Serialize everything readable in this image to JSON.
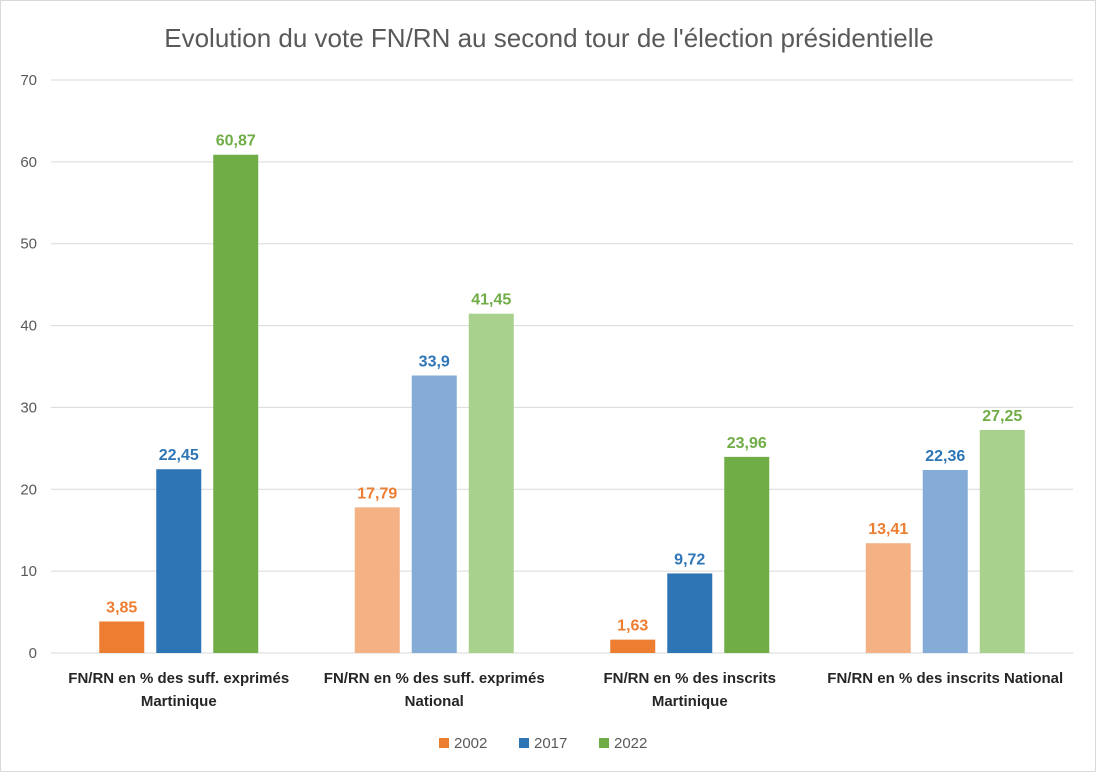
{
  "chart_data": {
    "type": "bar",
    "title": "Evolution du vote FN/RN au second tour de l'élection présidentielle",
    "xlabel": "",
    "ylabel": "",
    "ylim": [
      0,
      70
    ],
    "yticks": [
      "0",
      "10",
      "20",
      "30",
      "40",
      "50",
      "60",
      "70"
    ],
    "grid": true,
    "legend_position": "bottom",
    "categories": [
      [
        "FN/RN en % des suff. exprimés",
        "Martinique"
      ],
      [
        "FN/RN en % des suff. exprimés",
        "National"
      ],
      [
        "FN/RN en % des inscrits",
        "Martinique"
      ],
      [
        "FN/RN en % des inscrits National"
      ]
    ],
    "series": [
      {
        "name": "2002",
        "values": [
          3.85,
          17.79,
          1.63,
          13.41
        ],
        "labels": [
          "3,85",
          "17,79",
          "1,63",
          "13,41"
        ],
        "color": "#ed7d31",
        "bar_colors": [
          "#ed7d31",
          "#f4b183",
          "#ed7d31",
          "#f4b183"
        ]
      },
      {
        "name": "2017",
        "values": [
          22.45,
          33.9,
          9.72,
          22.36
        ],
        "labels": [
          "22,45",
          "33,9",
          "9,72",
          "22,36"
        ],
        "color": "#2e75b6",
        "bar_colors": [
          "#2e75b6",
          "#84acd7",
          "#2e75b6",
          "#84acd7"
        ]
      },
      {
        "name": "2022",
        "values": [
          60.87,
          41.45,
          23.96,
          27.25
        ],
        "labels": [
          "60,87",
          "41,45",
          "23,96",
          "27,25"
        ],
        "color": "#70ad47",
        "bar_colors": [
          "#70ad47",
          "#a9d18e",
          "#70ad47",
          "#a9d18e"
        ]
      }
    ]
  }
}
